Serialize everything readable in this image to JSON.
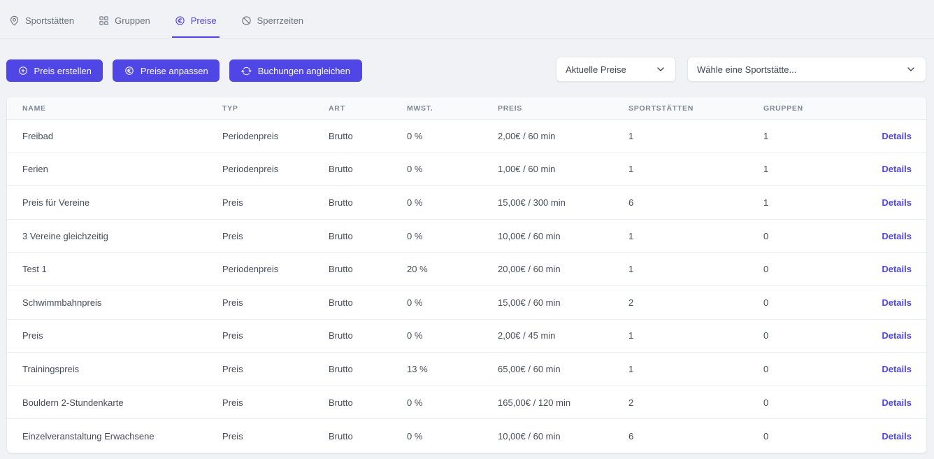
{
  "colors": {
    "accent": "#4f46e5",
    "page_background": "#f1f2f5",
    "card_background": "#ffffff"
  },
  "tabs": [
    {
      "label": "Sportstätten",
      "icon": "map-pin-icon",
      "active": false
    },
    {
      "label": "Gruppen",
      "icon": "grid-icon",
      "active": false
    },
    {
      "label": "Preise",
      "icon": "euro-circle-icon",
      "active": true
    },
    {
      "label": "Sperrzeiten",
      "icon": "ban-icon",
      "active": false
    }
  ],
  "toolbar": {
    "buttons": [
      {
        "label": "Preis erstellen",
        "icon": "plus-circle-icon"
      },
      {
        "label": "Preise anpassen",
        "icon": "euro-circle-icon"
      },
      {
        "label": "Buchungen angleichen",
        "icon": "refresh-icon"
      }
    ]
  },
  "filters": {
    "price_state": {
      "value": "Aktuelle Preise",
      "icon": "chevron-down-icon"
    },
    "facility": {
      "placeholder": "Wähle eine Sportstätte...",
      "icon": "chevron-down-icon"
    }
  },
  "table": {
    "columns": [
      "Name",
      "Typ",
      "Art",
      "MwSt.",
      "Preis",
      "Sportstätten",
      "Gruppen"
    ],
    "details_label": "Details",
    "rows": [
      {
        "name": "Freibad",
        "typ": "Periodenpreis",
        "art": "Brutto",
        "mwst": "0 %",
        "preis": "2,00€ / 60 min",
        "sportstaetten": "1",
        "gruppen": "1"
      },
      {
        "name": "Ferien",
        "typ": "Periodenpreis",
        "art": "Brutto",
        "mwst": "0 %",
        "preis": "1,00€ / 60 min",
        "sportstaetten": "1",
        "gruppen": "1"
      },
      {
        "name": "Preis für Vereine",
        "typ": "Preis",
        "art": "Brutto",
        "mwst": "0 %",
        "preis": "15,00€ / 300 min",
        "sportstaetten": "6",
        "gruppen": "1"
      },
      {
        "name": "3 Vereine gleichzeitig",
        "typ": "Preis",
        "art": "Brutto",
        "mwst": "0 %",
        "preis": "10,00€ / 60 min",
        "sportstaetten": "1",
        "gruppen": "0"
      },
      {
        "name": "Test 1",
        "typ": "Periodenpreis",
        "art": "Brutto",
        "mwst": "20 %",
        "preis": "20,00€ / 60 min",
        "sportstaetten": "1",
        "gruppen": "0"
      },
      {
        "name": "Schwimmbahnpreis",
        "typ": "Preis",
        "art": "Brutto",
        "mwst": "0 %",
        "preis": "15,00€ / 60 min",
        "sportstaetten": "2",
        "gruppen": "0"
      },
      {
        "name": "Preis",
        "typ": "Preis",
        "art": "Brutto",
        "mwst": "0 %",
        "preis": "2,00€ / 45 min",
        "sportstaetten": "1",
        "gruppen": "0"
      },
      {
        "name": "Trainingspreis",
        "typ": "Preis",
        "art": "Brutto",
        "mwst": "13 %",
        "preis": "65,00€ / 60 min",
        "sportstaetten": "1",
        "gruppen": "0"
      },
      {
        "name": "Bouldern 2-Stundenkarte",
        "typ": "Preis",
        "art": "Brutto",
        "mwst": "0 %",
        "preis": "165,00€ / 120 min",
        "sportstaetten": "2",
        "gruppen": "0"
      },
      {
        "name": "Einzelveranstaltung Erwachsene",
        "typ": "Preis",
        "art": "Brutto",
        "mwst": "0 %",
        "preis": "10,00€ / 60 min",
        "sportstaetten": "6",
        "gruppen": "0"
      }
    ]
  }
}
